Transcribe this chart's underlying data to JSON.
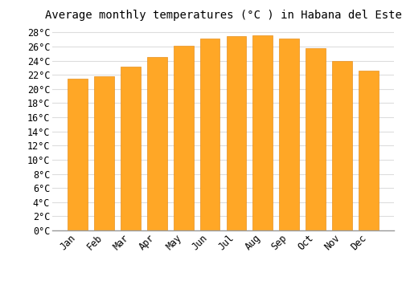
{
  "title": "Average monthly temperatures (°C ) in Habana del Este",
  "months": [
    "Jan",
    "Feb",
    "Mar",
    "Apr",
    "May",
    "Jun",
    "Jul",
    "Aug",
    "Sep",
    "Oct",
    "Nov",
    "Dec"
  ],
  "values": [
    21.5,
    21.8,
    23.1,
    24.5,
    26.1,
    27.1,
    27.5,
    27.6,
    27.1,
    25.8,
    24.0,
    22.6
  ],
  "bar_color": "#FFA726",
  "bar_edge_color": "#E69020",
  "background_color": "#FFFFFF",
  "plot_bg_color": "#FFFFFF",
  "grid_color": "#DDDDDD",
  "ylim": [
    0,
    29
  ],
  "yticks": [
    0,
    2,
    4,
    6,
    8,
    10,
    12,
    14,
    16,
    18,
    20,
    22,
    24,
    26,
    28
  ],
  "title_fontsize": 10,
  "tick_fontsize": 8.5,
  "font_family": "monospace",
  "bar_width": 0.75
}
